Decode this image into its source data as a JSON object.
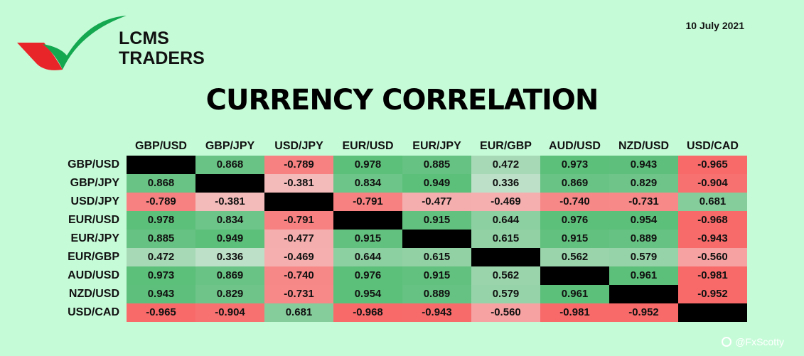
{
  "brand": {
    "line1": "LCMS",
    "line2": "TRADERS"
  },
  "date": "10 July 2021",
  "title": "CURRENCY CORRELATION",
  "watermark": "@FxScotty",
  "colors": {
    "positive": "#5cbf7a",
    "negative": "#f86a6a",
    "diagonal": "#000000",
    "background": "#c6fbd8"
  },
  "chart_data": {
    "type": "heatmap",
    "title": "CURRENCY CORRELATION",
    "categories": [
      "GBP/USD",
      "GBP/JPY",
      "USD/JPY",
      "EUR/USD",
      "EUR/JPY",
      "EUR/GBP",
      "AUD/USD",
      "NZD/USD",
      "USD/CAD"
    ],
    "rows": [
      "GBP/USD",
      "GBP/JPY",
      "USD/JPY",
      "EUR/USD",
      "EUR/JPY",
      "EUR/GBP",
      "AUD/USD",
      "NZD/USD",
      "USD/CAD"
    ],
    "values": [
      [
        null,
        "0.868",
        "-0.789",
        "0.978",
        "0.885",
        "0.472",
        "0.973",
        "0.943",
        "-0.965"
      ],
      [
        "0.868",
        null,
        "-0.381",
        "0.834",
        "0.949",
        "0.336",
        "0.869",
        "0.829",
        "-0.904"
      ],
      [
        "-0.789",
        "-0.381",
        null,
        "-0.791",
        "-0.477",
        "-0.469",
        "-0.740",
        "-0.731",
        "0.681"
      ],
      [
        "0.978",
        "0.834",
        "-0.791",
        null,
        "0.915",
        "0.644",
        "0.976",
        "0.954",
        "-0.968"
      ],
      [
        "0.885",
        "0.949",
        "-0.477",
        "0.915",
        null,
        "0.615",
        "0.915",
        "0.889",
        "-0.943"
      ],
      [
        "0.472",
        "0.336",
        "-0.469",
        "0.644",
        "0.615",
        null,
        "0.562",
        "0.579",
        "-0.560"
      ],
      [
        "0.973",
        "0.869",
        "-0.740",
        "0.976",
        "0.915",
        "0.562",
        null,
        "0.961",
        "-0.981"
      ],
      [
        "0.943",
        "0.829",
        "-0.731",
        "0.954",
        "0.889",
        "0.579",
        "0.961",
        null,
        "-0.952"
      ],
      [
        "-0.965",
        "-0.904",
        "0.681",
        "-0.968",
        "-0.943",
        "-0.560",
        "-0.981",
        "-0.952",
        null
      ]
    ]
  }
}
